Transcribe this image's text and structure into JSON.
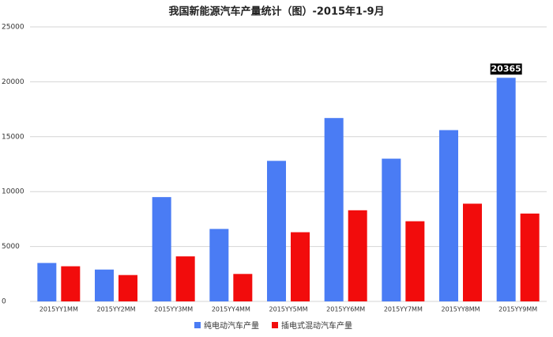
{
  "chart_data": {
    "type": "bar",
    "title": "我国新能源汽车产量统计（图）-2015年1-9月",
    "categories": [
      "2015YY1MM",
      "2015YY2MM",
      "2015YY3MM",
      "2015YY4MM",
      "2015YY5MM",
      "2015YY6MM",
      "2015YY7MM",
      "2015YY8MM",
      "2015YY9MM"
    ],
    "series": [
      {
        "name": "纯电动汽车产量",
        "color": "#4a7cf4",
        "values": [
          3500,
          2900,
          9500,
          6600,
          12800,
          16700,
          13000,
          15600,
          20365
        ],
        "value_labels": [
          null,
          null,
          null,
          null,
          null,
          null,
          null,
          null,
          "20365"
        ]
      },
      {
        "name": "插电式混动汽车产量",
        "color": "#f20c0c",
        "values": [
          3200,
          2400,
          4100,
          2500,
          6300,
          8300,
          7300,
          8900,
          8000
        ]
      }
    ],
    "ylim": [
      0,
      25000
    ],
    "yticks": [
      0,
      5000,
      10000,
      15000,
      20000,
      25000
    ],
    "grid": true,
    "legend": "bottom"
  }
}
